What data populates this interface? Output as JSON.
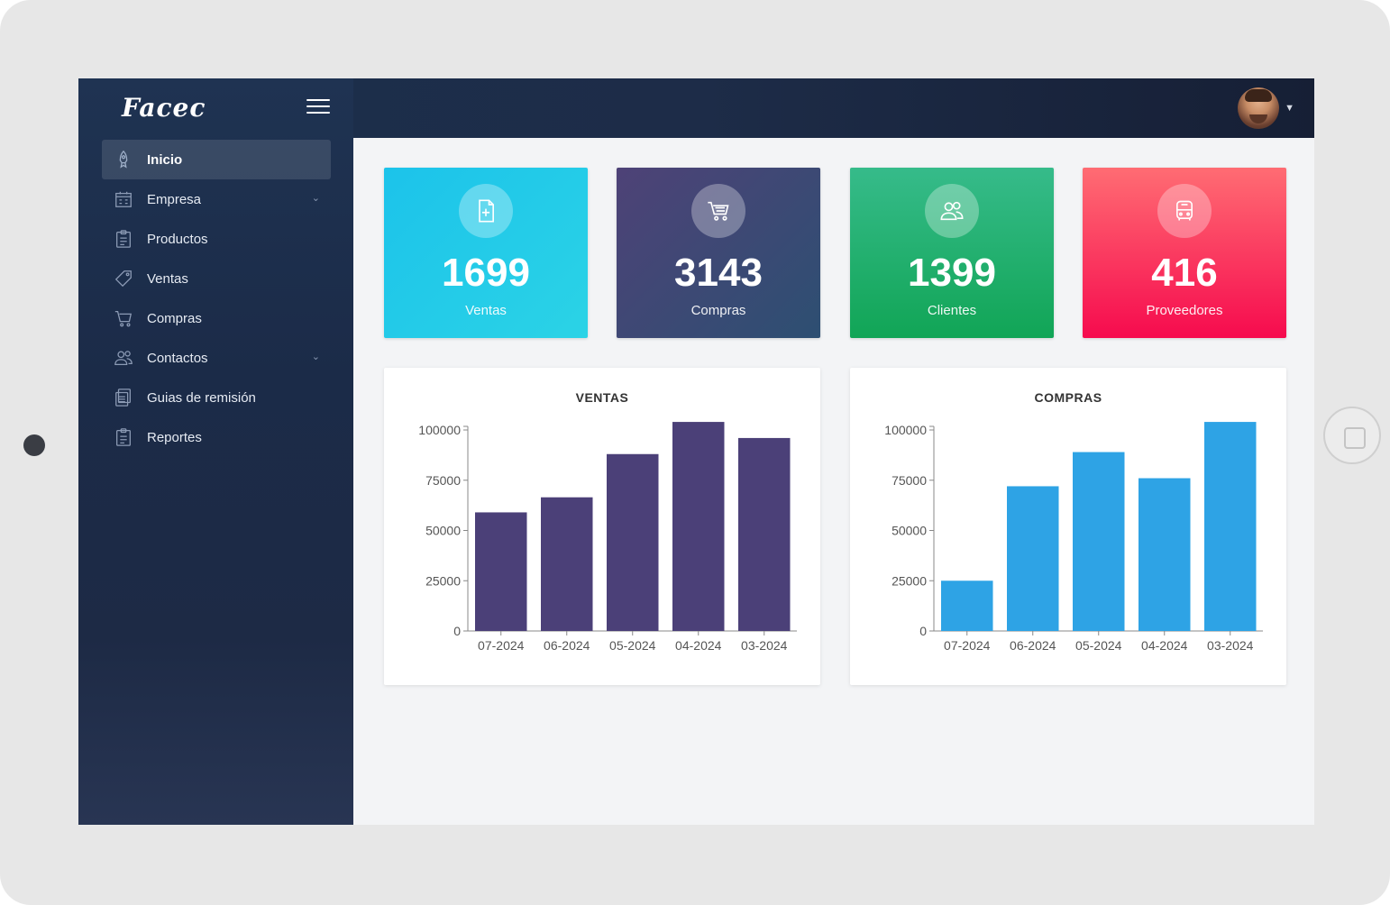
{
  "app": {
    "brand": "Facec"
  },
  "sidebar": {
    "items": [
      {
        "label": "Inicio",
        "icon": "rocket-icon",
        "active": true,
        "has_submenu": false
      },
      {
        "label": "Empresa",
        "icon": "building-icon",
        "active": false,
        "has_submenu": true
      },
      {
        "label": "Productos",
        "icon": "clipboard-icon",
        "active": false,
        "has_submenu": false
      },
      {
        "label": "Ventas",
        "icon": "tag-icon",
        "active": false,
        "has_submenu": false
      },
      {
        "label": "Compras",
        "icon": "cart-icon",
        "active": false,
        "has_submenu": false
      },
      {
        "label": "Contactos",
        "icon": "users-icon",
        "active": false,
        "has_submenu": true
      },
      {
        "label": "Guias de remisión",
        "icon": "document-icon",
        "active": false,
        "has_submenu": false
      },
      {
        "label": "Reportes",
        "icon": "clipboard-icon",
        "active": false,
        "has_submenu": false
      }
    ]
  },
  "stats": {
    "ventas": {
      "value": "1699",
      "label": "Ventas",
      "icon": "file-plus-icon"
    },
    "compras": {
      "value": "3143",
      "label": "Compras",
      "icon": "cart-icon"
    },
    "clientes": {
      "value": "1399",
      "label": "Clientes",
      "icon": "users-icon"
    },
    "proveedores": {
      "value": "416",
      "label": "Proveedores",
      "icon": "bus-icon"
    }
  },
  "colors": {
    "ventas_bars": "#4b4078",
    "compras_bars": "#2ea3e5"
  },
  "chart_data": [
    {
      "type": "bar",
      "title": "VENTAS",
      "categories": [
        "07-2024",
        "06-2024",
        "05-2024",
        "04-2024",
        "03-2024"
      ],
      "values": [
        59000,
        66500,
        88000,
        104000,
        96000
      ],
      "yticks": [
        0,
        25000,
        50000,
        75000,
        100000
      ],
      "ylim": [
        0,
        100000
      ],
      "color": "#4b4078",
      "grid": false
    },
    {
      "type": "bar",
      "title": "COMPRAS",
      "categories": [
        "07-2024",
        "06-2024",
        "05-2024",
        "04-2024",
        "03-2024"
      ],
      "values": [
        25000,
        72000,
        89000,
        76000,
        104000
      ],
      "yticks": [
        0,
        25000,
        50000,
        75000,
        100000
      ],
      "ylim": [
        0,
        100000
      ],
      "color": "#2ea3e5",
      "grid": false
    }
  ]
}
